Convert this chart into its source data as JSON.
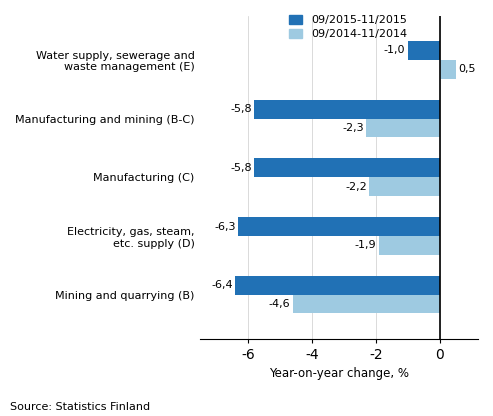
{
  "categories": [
    "Mining and quarrying (B)",
    "Electricity, gas, steam,\netc. supply (D)",
    "Manufacturing (C)",
    "Manufacturing and mining (B-C)",
    "Water supply, sewerage and\nwaste management (E)"
  ],
  "series1_label": "09/2015-11/2015",
  "series2_label": "09/2014-11/2014",
  "series1_values": [
    -6.4,
    -6.3,
    -5.8,
    -5.8,
    -1.0
  ],
  "series2_values": [
    -4.6,
    -1.9,
    -2.2,
    -2.3,
    0.5
  ],
  "series1_color": "#2171b5",
  "series2_color": "#9ecae1",
  "bar_height": 0.32,
  "xlim": [
    -7.5,
    1.2
  ],
  "xticks": [
    -6,
    -4,
    -2,
    0
  ],
  "xlabel": "Year-on-year change, %",
  "source": "Source: Statistics Finland"
}
